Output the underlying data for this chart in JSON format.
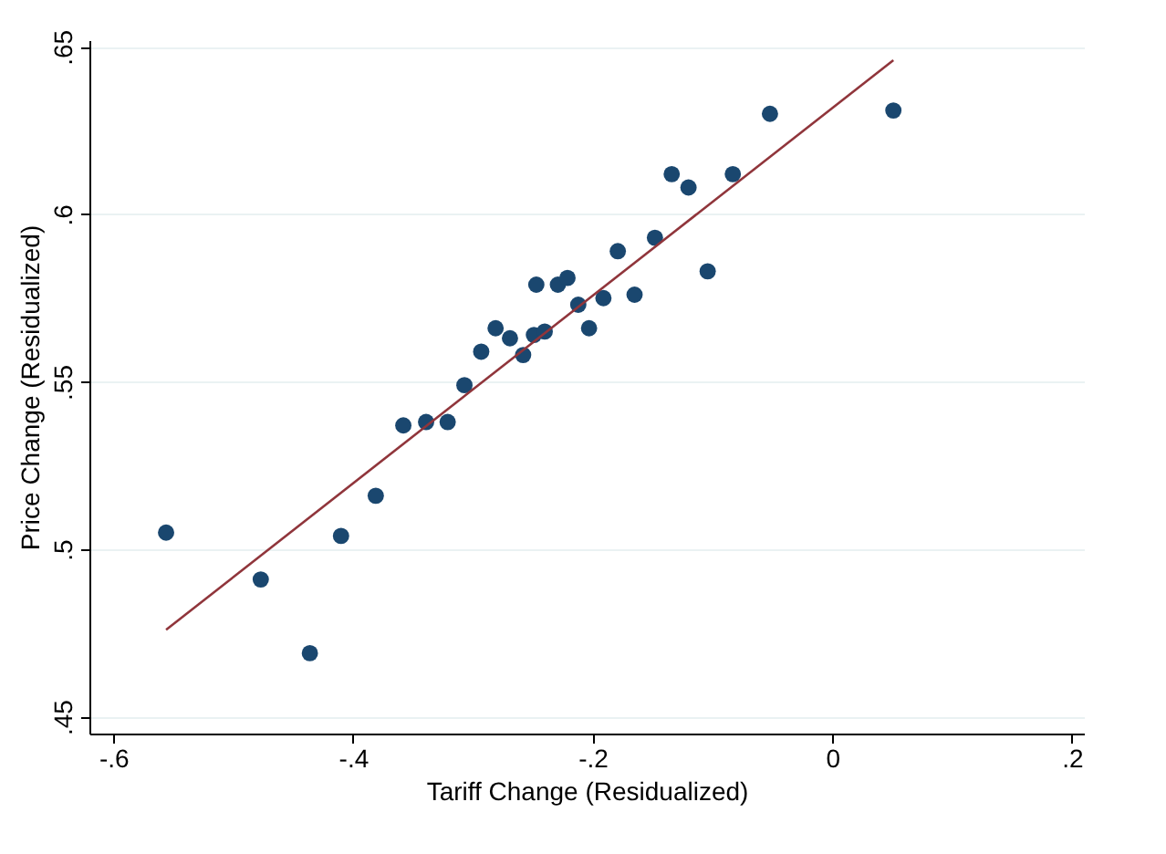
{
  "chart_data": {
    "type": "scatter",
    "xlabel": "Tariff Change (Residualized)",
    "ylabel": "Price Change (Residualized)",
    "xlim": [
      -0.62,
      0.21
    ],
    "ylim": [
      0.445,
      0.652
    ],
    "xticks": [
      {
        "value": -0.6,
        "label": "-.6"
      },
      {
        "value": -0.4,
        "label": "-.4"
      },
      {
        "value": -0.2,
        "label": "-.2"
      },
      0,
      {
        "value": 0.2,
        "label": ".2"
      }
    ],
    "yticks": [
      {
        "value": 0.45,
        "label": ".45"
      },
      {
        "value": 0.5,
        "label": ".5"
      },
      {
        "value": 0.55,
        "label": ".55"
      },
      {
        "value": 0.6,
        "label": ".6"
      },
      {
        "value": 0.65,
        "label": ".65"
      }
    ],
    "grid": "y",
    "marker": "circle",
    "series": [
      {
        "color": "#1a476f",
        "x": [
          -0.556,
          -0.477,
          -0.436,
          -0.41,
          -0.381,
          -0.358,
          -0.339,
          -0.321,
          -0.307,
          -0.293,
          -0.281,
          -0.269,
          -0.258,
          -0.249,
          -0.247,
          -0.24,
          -0.229,
          -0.221,
          -0.212,
          -0.203,
          -0.191,
          -0.179,
          -0.165,
          -0.148,
          -0.134,
          -0.12,
          -0.104,
          -0.083,
          -0.052,
          0.051
        ],
        "values": [
          0.505,
          0.491,
          0.469,
          0.504,
          0.516,
          0.537,
          0.538,
          0.538,
          0.549,
          0.559,
          0.566,
          0.563,
          0.558,
          0.564,
          0.579,
          0.565,
          0.579,
          0.581,
          0.573,
          0.566,
          0.575,
          0.589,
          0.576,
          0.593,
          0.612,
          0.608,
          0.583,
          0.612,
          0.63,
          0.631
        ]
      },
      {
        "type": "line",
        "color": "#90353b",
        "line_style": "solid",
        "marker": "none",
        "x": [
          -0.556,
          0.051
        ],
        "values": [
          0.476,
          0.646
        ]
      }
    ]
  }
}
